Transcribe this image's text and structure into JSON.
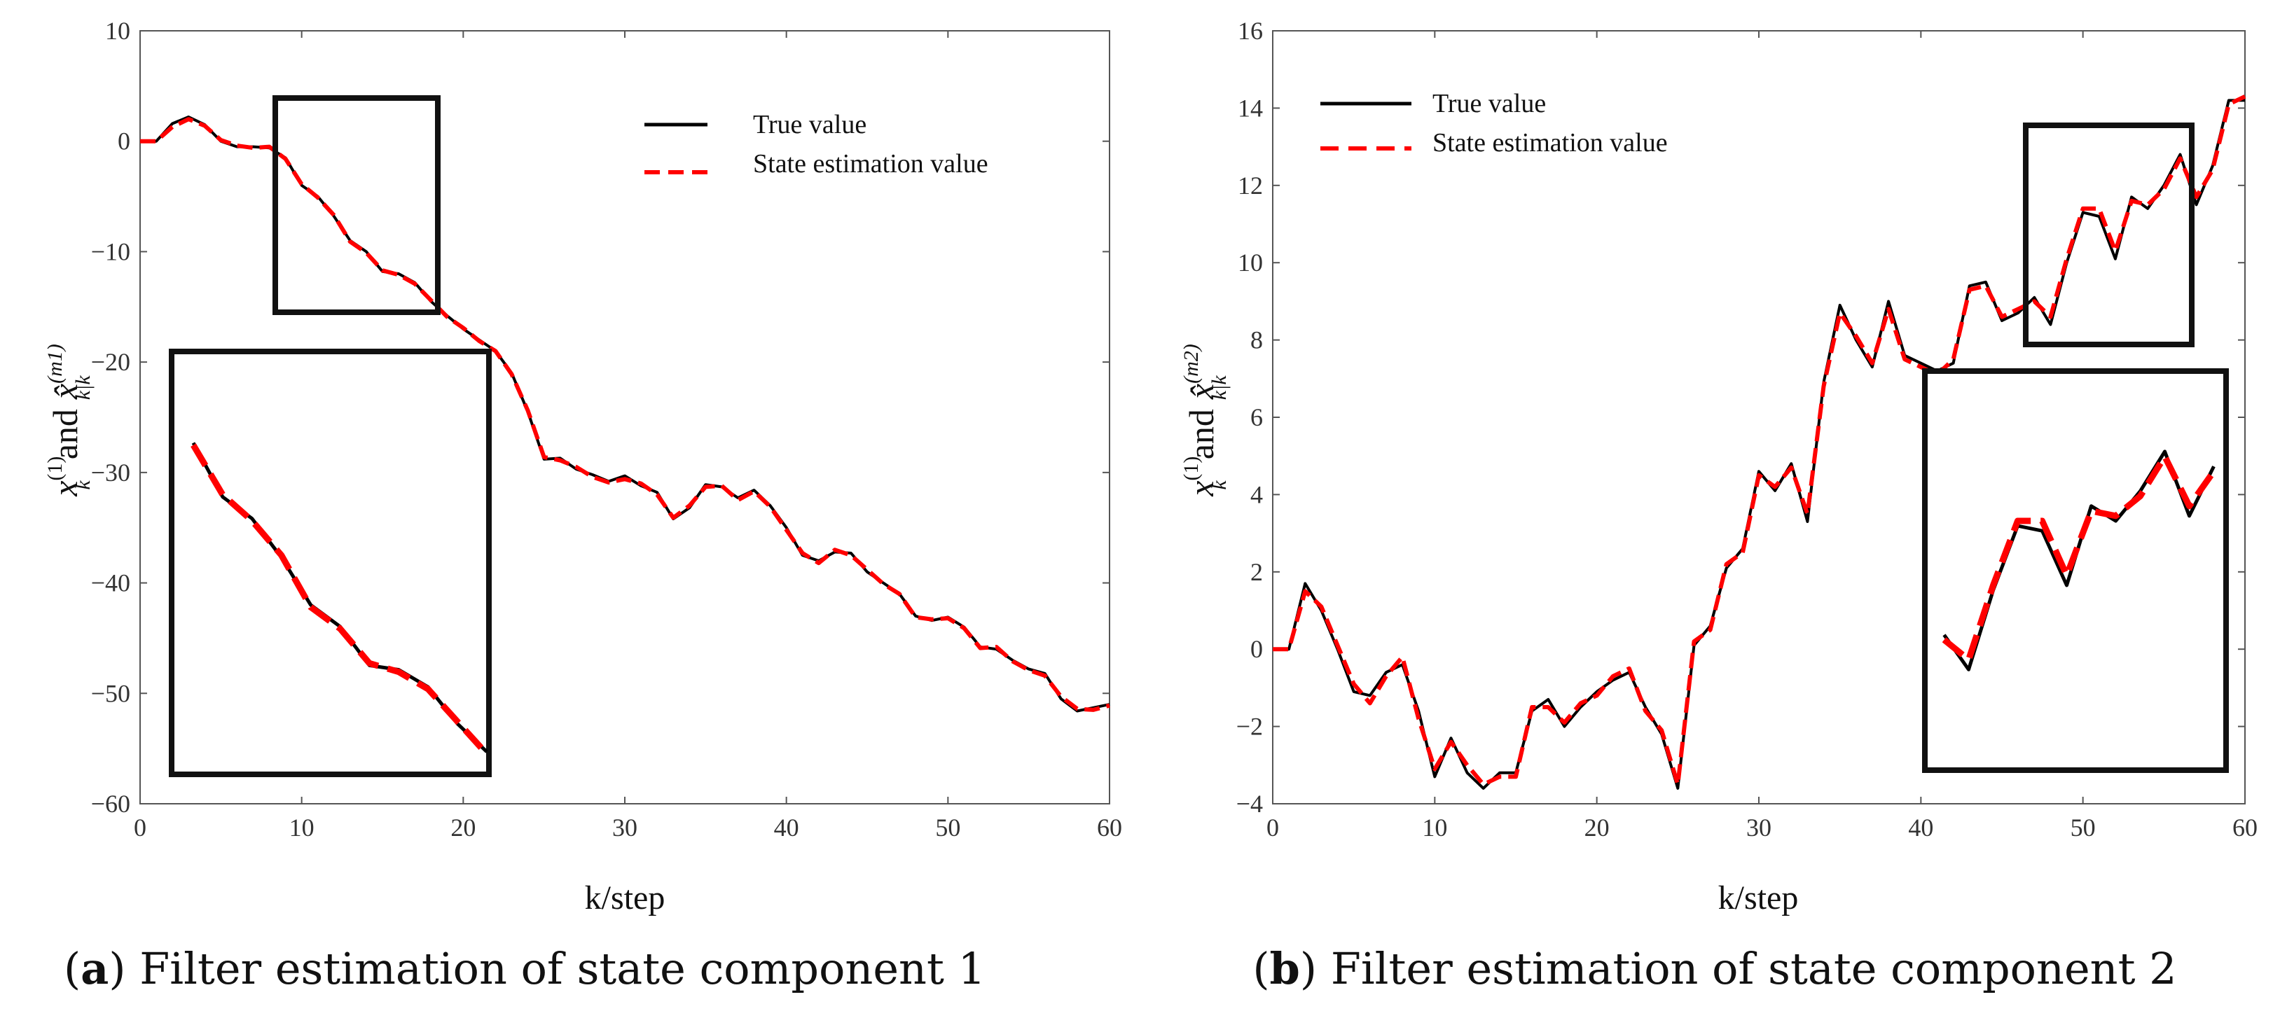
{
  "chart_data": [
    {
      "type": "line",
      "panel": "a",
      "caption_letter": "a",
      "caption_text": "Filter estimation of state component 1",
      "xlabel": "k/step",
      "ylabel": {
        "base": "x",
        "sup": "(1)",
        "sub": "k",
        "and": "and",
        "hat_base": "x̂",
        "hat_sup": "(m1)",
        "hat_sub": "k|k"
      },
      "xlim": [
        0,
        60
      ],
      "ylim": [
        -60,
        10
      ],
      "xticks": [
        "0",
        "10",
        "20",
        "30",
        "40",
        "50",
        "60"
      ],
      "yticks": [
        "10",
        "0",
        "−10",
        "−20",
        "−30",
        "−40",
        "−50",
        "−60"
      ],
      "legend": {
        "position": "top-right",
        "entries": [
          "True value",
          "State estimation value"
        ]
      },
      "series": [
        {
          "name": "True value",
          "color": "#000000",
          "x": [
            0,
            1,
            2,
            3,
            4,
            5,
            6,
            7,
            8,
            9,
            10,
            11,
            12,
            13,
            14,
            15,
            16,
            17,
            18,
            19,
            20,
            21,
            22,
            23,
            24,
            25,
            26,
            27,
            28,
            29,
            30,
            31,
            32,
            33,
            34,
            35,
            36,
            37,
            38,
            39,
            40,
            41,
            42,
            43,
            44,
            45,
            46,
            47,
            48,
            49,
            50,
            51,
            52,
            53,
            54,
            55,
            56,
            57,
            58,
            59,
            60
          ],
          "values": [
            0,
            0,
            1.6,
            2.2,
            1.5,
            0,
            -0.5,
            -0.5,
            -0.6,
            -1.5,
            -4,
            -5,
            -6.8,
            -9,
            -10,
            -11.8,
            -12,
            -12.8,
            -14.5,
            -15.8,
            -17,
            -18,
            -19,
            -21,
            -24.5,
            -28.8,
            -28.7,
            -29.7,
            -30.2,
            -30.8,
            -30.3,
            -31.2,
            -31.8,
            -34.2,
            -33.2,
            -31.1,
            -31.3,
            -32.3,
            -31.6,
            -33,
            -35,
            -37.5,
            -38,
            -37.2,
            -37.3,
            -39,
            -40,
            -41,
            -43,
            -43.4,
            -43.1,
            -44,
            -45.8,
            -46,
            -47,
            -47.8,
            -48.2,
            -50.5,
            -51.6,
            -51.3,
            -51
          ]
        },
        {
          "name": "State estimation value",
          "color": "#ff0000",
          "dashed": true,
          "x": [
            0,
            1,
            2,
            3,
            4,
            5,
            6,
            7,
            8,
            9,
            10,
            11,
            12,
            13,
            14,
            15,
            16,
            17,
            18,
            19,
            20,
            21,
            22,
            23,
            24,
            25,
            26,
            27,
            28,
            29,
            30,
            31,
            32,
            33,
            34,
            35,
            36,
            37,
            38,
            39,
            40,
            41,
            42,
            43,
            44,
            45,
            46,
            47,
            48,
            49,
            50,
            51,
            52,
            53,
            54,
            55,
            56,
            57,
            58,
            59,
            60
          ],
          "values": [
            0,
            0,
            1.3,
            2.0,
            1.4,
            0.1,
            -0.4,
            -0.6,
            -0.5,
            -1.6,
            -3.9,
            -5.1,
            -6.7,
            -9.1,
            -10.1,
            -11.7,
            -12.1,
            -12.9,
            -14.4,
            -15.9,
            -16.9,
            -18.1,
            -19,
            -21.1,
            -24.4,
            -28.6,
            -28.9,
            -29.5,
            -30.4,
            -30.9,
            -30.6,
            -31,
            -32,
            -34.1,
            -33,
            -31.3,
            -31.2,
            -32.5,
            -31.7,
            -33.1,
            -35.2,
            -37.3,
            -38.2,
            -37,
            -37.5,
            -38.8,
            -40.1,
            -41,
            -43.1,
            -43.3,
            -43.2,
            -44.1,
            -45.9,
            -45.8,
            -47.1,
            -47.9,
            -48.4,
            -50.3,
            -51.4,
            -51.5,
            -51.1
          ]
        }
      ]
    },
    {
      "type": "line",
      "panel": "b",
      "caption_letter": "b",
      "caption_text": "Filter estimation of state component 2",
      "xlabel": "k/step",
      "ylabel": {
        "base": "x",
        "sup": "(1)",
        "sub": "k",
        "and": "and",
        "hat_base": "x̂",
        "hat_sup": "(m2)",
        "hat_sub": "k|k"
      },
      "xlim": [
        0,
        60
      ],
      "ylim": [
        -4,
        16
      ],
      "xticks": [
        "0",
        "10",
        "20",
        "30",
        "40",
        "50",
        "60"
      ],
      "yticks": [
        "16",
        "14",
        "12",
        "10",
        "8",
        "6",
        "4",
        "2",
        "0",
        "−2",
        "−4"
      ],
      "legend": {
        "position": "top-left",
        "entries": [
          "True value",
          "State estimation value"
        ]
      },
      "series": [
        {
          "name": "True value",
          "color": "#000000",
          "x": [
            0,
            1,
            2,
            3,
            4,
            5,
            6,
            7,
            8,
            9,
            10,
            11,
            12,
            13,
            14,
            15,
            16,
            17,
            18,
            19,
            20,
            21,
            22,
            23,
            24,
            25,
            26,
            27,
            28,
            29,
            30,
            31,
            32,
            33,
            34,
            35,
            36,
            37,
            38,
            39,
            40,
            41,
            42,
            43,
            44,
            45,
            46,
            47,
            48,
            49,
            50,
            51,
            52,
            53,
            54,
            55,
            56,
            57,
            58,
            59,
            60
          ],
          "values": [
            0,
            0,
            1.7,
            1,
            0,
            -1.1,
            -1.2,
            -0.6,
            -0.4,
            -1.6,
            -3.3,
            -2.3,
            -3.2,
            -3.6,
            -3.2,
            -3.2,
            -1.6,
            -1.3,
            -2,
            -1.5,
            -1.1,
            -0.8,
            -0.6,
            -1.5,
            -2.2,
            -3.6,
            0.1,
            0.6,
            2.1,
            2.6,
            4.6,
            4.1,
            4.8,
            3.3,
            6.9,
            8.9,
            8,
            7.3,
            9,
            7.6,
            7.4,
            7.2,
            7.4,
            9.4,
            9.5,
            8.5,
            8.7,
            9.1,
            8.4,
            10,
            11.3,
            11.2,
            10.1,
            11.7,
            11.4,
            12,
            12.8,
            11.5,
            12.5,
            14.2,
            14.2
          ]
        },
        {
          "name": "State estimation value",
          "color": "#ff0000",
          "dashed": true,
          "x": [
            0,
            1,
            2,
            3,
            4,
            5,
            6,
            7,
            8,
            9,
            10,
            11,
            12,
            13,
            14,
            15,
            16,
            17,
            18,
            19,
            20,
            21,
            22,
            23,
            24,
            25,
            26,
            27,
            28,
            29,
            30,
            31,
            32,
            33,
            34,
            35,
            36,
            37,
            38,
            39,
            40,
            41,
            42,
            43,
            44,
            45,
            46,
            47,
            48,
            49,
            50,
            51,
            52,
            53,
            54,
            55,
            56,
            57,
            58,
            59,
            60
          ],
          "values": [
            0,
            0,
            1.5,
            1.1,
            0.1,
            -0.9,
            -1.4,
            -0.7,
            -0.2,
            -1.8,
            -3.1,
            -2.4,
            -3,
            -3.5,
            -3.3,
            -3.3,
            -1.5,
            -1.5,
            -1.9,
            -1.4,
            -1.2,
            -0.7,
            -0.5,
            -1.6,
            -2.1,
            -3.5,
            0.2,
            0.5,
            2.2,
            2.5,
            4.5,
            4.2,
            4.7,
            3.5,
            6.8,
            8.7,
            8.1,
            7.4,
            8.8,
            7.5,
            7.3,
            7.1,
            7.5,
            9.3,
            9.4,
            8.6,
            8.8,
            9,
            8.6,
            10.1,
            11.4,
            11.4,
            10.3,
            11.6,
            11.5,
            11.9,
            12.7,
            11.7,
            12.4,
            14.1,
            14.3
          ]
        }
      ]
    }
  ]
}
